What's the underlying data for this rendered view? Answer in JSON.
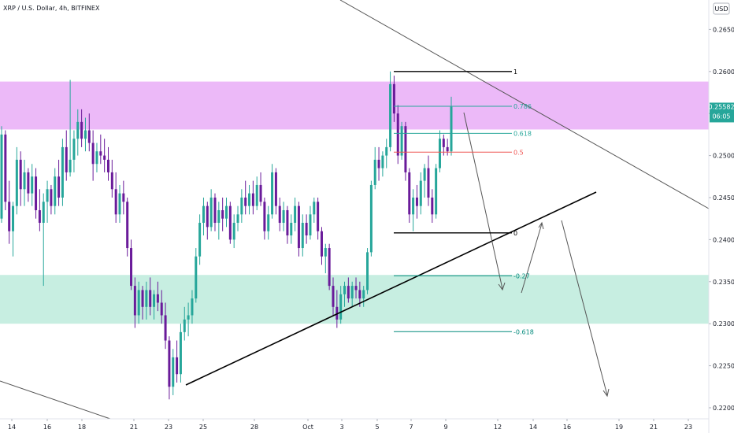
{
  "header": {
    "title": "XRP / U.S. Dollar, 4h, BITFINEX",
    "currency_label": "USD"
  },
  "price_tag": {
    "value": "0.25582",
    "countdown": "06:05"
  },
  "colors": {
    "bull": "#26a69a",
    "bear": "#6a1b9a",
    "resistance_zone": "#e6a2f5",
    "support_zone": "#b9ead9",
    "fib_green": "#26a69a",
    "fib_red": "#ef5350",
    "fib_teal": "#00897b",
    "price_tag_bg": "#26a69a"
  },
  "fib_levels": [
    {
      "label": "1",
      "value": 0.26,
      "color": "#000000"
    },
    {
      "label": "0.786",
      "value": 0.25586,
      "color": "#26a69a"
    },
    {
      "label": "0.618",
      "value": 0.25264,
      "color": "#26a69a"
    },
    {
      "label": "0.5",
      "value": 0.2504,
      "color": "#ef5350"
    },
    {
      "label": "0",
      "value": 0.2408,
      "color": "#000000"
    },
    {
      "label": "-0.27",
      "value": 0.2357,
      "color": "#00897b"
    },
    {
      "label": "-0.618",
      "value": 0.22905,
      "color": "#00897b"
    }
  ],
  "chart_data": {
    "type": "candlestick",
    "title": "XRP / U.S. Dollar, 4h, BITFINEX",
    "ylabel": "USD",
    "ylim": [
      0.217,
      0.2685
    ],
    "y_ticks": [
      "0.26500",
      "0.26000",
      "0.25500",
      "0.25000",
      "0.24500",
      "0.24000",
      "0.23500",
      "0.23000",
      "0.22500",
      "0.22000"
    ],
    "x_ticks": [
      "14",
      "16",
      "18",
      "21",
      "23",
      "25",
      "28",
      "Oct",
      "3",
      "5",
      "7",
      "9",
      "12",
      "14",
      "16",
      "19",
      "21",
      "23"
    ],
    "zones": [
      {
        "name": "resistance",
        "from": 0.2531,
        "to": 0.2588
      },
      {
        "name": "support",
        "from": 0.23,
        "to": 0.2358
      }
    ],
    "candles": [
      [
        0.2425,
        0.2535,
        0.242,
        0.2525
      ],
      [
        0.2525,
        0.253,
        0.2435,
        0.2445
      ],
      [
        0.2445,
        0.247,
        0.2395,
        0.241
      ],
      [
        0.241,
        0.2445,
        0.238,
        0.244
      ],
      [
        0.244,
        0.251,
        0.243,
        0.2495
      ],
      [
        0.2495,
        0.2505,
        0.244,
        0.246
      ],
      [
        0.246,
        0.2495,
        0.244,
        0.248
      ],
      [
        0.248,
        0.2485,
        0.2445,
        0.2455
      ],
      [
        0.2455,
        0.249,
        0.244,
        0.2475
      ],
      [
        0.2475,
        0.2485,
        0.2425,
        0.2435
      ],
      [
        0.2435,
        0.246,
        0.241,
        0.242
      ],
      [
        0.242,
        0.2455,
        0.2345,
        0.2445
      ],
      [
        0.2445,
        0.247,
        0.242,
        0.246
      ],
      [
        0.246,
        0.2465,
        0.243,
        0.244
      ],
      [
        0.244,
        0.2485,
        0.243,
        0.2475
      ],
      [
        0.2475,
        0.2495,
        0.244,
        0.245
      ],
      [
        0.245,
        0.252,
        0.244,
        0.251
      ],
      [
        0.251,
        0.253,
        0.247,
        0.248
      ],
      [
        0.248,
        0.259,
        0.2475,
        0.2495
      ],
      [
        0.2495,
        0.253,
        0.248,
        0.252
      ],
      [
        0.252,
        0.2555,
        0.25,
        0.254
      ],
      [
        0.254,
        0.2555,
        0.251,
        0.252
      ],
      [
        0.252,
        0.2545,
        0.2505,
        0.253
      ],
      [
        0.253,
        0.255,
        0.2505,
        0.2515
      ],
      [
        0.2515,
        0.253,
        0.247,
        0.249
      ],
      [
        0.249,
        0.2515,
        0.248,
        0.2505
      ],
      [
        0.2505,
        0.2525,
        0.249,
        0.25
      ],
      [
        0.25,
        0.252,
        0.248,
        0.2495
      ],
      [
        0.2495,
        0.251,
        0.247,
        0.248
      ],
      [
        0.248,
        0.2495,
        0.245,
        0.246
      ],
      [
        0.246,
        0.248,
        0.242,
        0.243
      ],
      [
        0.243,
        0.2465,
        0.242,
        0.2455
      ],
      [
        0.2455,
        0.247,
        0.243,
        0.2445
      ],
      [
        0.2445,
        0.245,
        0.238,
        0.239
      ],
      [
        0.239,
        0.24,
        0.234,
        0.2345
      ],
      [
        0.2345,
        0.2355,
        0.2295,
        0.231
      ],
      [
        0.231,
        0.235,
        0.23,
        0.234
      ],
      [
        0.234,
        0.2345,
        0.2305,
        0.232
      ],
      [
        0.232,
        0.235,
        0.2305,
        0.234
      ],
      [
        0.234,
        0.2355,
        0.231,
        0.232
      ],
      [
        0.232,
        0.234,
        0.2305,
        0.2335
      ],
      [
        0.2335,
        0.235,
        0.2315,
        0.2325
      ],
      [
        0.2325,
        0.234,
        0.23,
        0.231
      ],
      [
        0.231,
        0.2325,
        0.227,
        0.228
      ],
      [
        0.228,
        0.2285,
        0.221,
        0.2225
      ],
      [
        0.2225,
        0.227,
        0.2215,
        0.226
      ],
      [
        0.226,
        0.228,
        0.223,
        0.224
      ],
      [
        0.224,
        0.23,
        0.223,
        0.229
      ],
      [
        0.229,
        0.232,
        0.228,
        0.2305
      ],
      [
        0.2305,
        0.2325,
        0.2285,
        0.231
      ],
      [
        0.231,
        0.234,
        0.23,
        0.233
      ],
      [
        0.233,
        0.239,
        0.2325,
        0.238
      ],
      [
        0.238,
        0.243,
        0.237,
        0.242
      ],
      [
        0.242,
        0.245,
        0.2405,
        0.244
      ],
      [
        0.244,
        0.2445,
        0.24,
        0.2415
      ],
      [
        0.2415,
        0.246,
        0.241,
        0.245
      ],
      [
        0.245,
        0.2455,
        0.241,
        0.242
      ],
      [
        0.242,
        0.2445,
        0.24,
        0.2435
      ],
      [
        0.2435,
        0.245,
        0.241,
        0.2425
      ],
      [
        0.2425,
        0.245,
        0.2415,
        0.244
      ],
      [
        0.244,
        0.2445,
        0.2395,
        0.24
      ],
      [
        0.24,
        0.243,
        0.239,
        0.242
      ],
      [
        0.242,
        0.244,
        0.241,
        0.243
      ],
      [
        0.243,
        0.246,
        0.242,
        0.245
      ],
      [
        0.245,
        0.247,
        0.243,
        0.244
      ],
      [
        0.244,
        0.2465,
        0.243,
        0.2455
      ],
      [
        0.2455,
        0.247,
        0.243,
        0.244
      ],
      [
        0.244,
        0.2475,
        0.2435,
        0.2465
      ],
      [
        0.2465,
        0.248,
        0.244,
        0.2445
      ],
      [
        0.2445,
        0.245,
        0.24,
        0.241
      ],
      [
        0.241,
        0.244,
        0.24,
        0.243
      ],
      [
        0.243,
        0.249,
        0.2425,
        0.248
      ],
      [
        0.248,
        0.2485,
        0.243,
        0.244
      ],
      [
        0.244,
        0.245,
        0.241,
        0.242
      ],
      [
        0.242,
        0.2445,
        0.241,
        0.2435
      ],
      [
        0.2435,
        0.244,
        0.2395,
        0.2405
      ],
      [
        0.2405,
        0.243,
        0.2395,
        0.242
      ],
      [
        0.242,
        0.245,
        0.241,
        0.244
      ],
      [
        0.244,
        0.2445,
        0.238,
        0.239
      ],
      [
        0.239,
        0.243,
        0.238,
        0.242
      ],
      [
        0.242,
        0.243,
        0.2395,
        0.2405
      ],
      [
        0.2405,
        0.244,
        0.24,
        0.243
      ],
      [
        0.243,
        0.245,
        0.242,
        0.2445
      ],
      [
        0.2445,
        0.245,
        0.24,
        0.241
      ],
      [
        0.241,
        0.2415,
        0.237,
        0.238
      ],
      [
        0.238,
        0.2395,
        0.236,
        0.239
      ],
      [
        0.239,
        0.2395,
        0.234,
        0.2345
      ],
      [
        0.2345,
        0.2355,
        0.231,
        0.232
      ],
      [
        0.232,
        0.234,
        0.2295,
        0.2305
      ],
      [
        0.2305,
        0.2345,
        0.23,
        0.2335
      ],
      [
        0.2335,
        0.235,
        0.232,
        0.2345
      ],
      [
        0.2345,
        0.2355,
        0.2325,
        0.233
      ],
      [
        0.233,
        0.235,
        0.232,
        0.2345
      ],
      [
        0.2345,
        0.2355,
        0.233,
        0.234
      ],
      [
        0.234,
        0.235,
        0.232,
        0.233
      ],
      [
        0.233,
        0.2345,
        0.232,
        0.234
      ],
      [
        0.234,
        0.239,
        0.2335,
        0.2385
      ],
      [
        0.2385,
        0.247,
        0.238,
        0.2465
      ],
      [
        0.2465,
        0.251,
        0.246,
        0.2495
      ],
      [
        0.2495,
        0.251,
        0.247,
        0.2485
      ],
      [
        0.2485,
        0.2505,
        0.2475,
        0.25
      ],
      [
        0.25,
        0.252,
        0.2485,
        0.251
      ],
      [
        0.251,
        0.26,
        0.2505,
        0.2585
      ],
      [
        0.2585,
        0.2595,
        0.254,
        0.255
      ],
      [
        0.255,
        0.256,
        0.249,
        0.25
      ],
      [
        0.25,
        0.254,
        0.2495,
        0.2535
      ],
      [
        0.2535,
        0.254,
        0.247,
        0.248
      ],
      [
        0.248,
        0.2485,
        0.242,
        0.243
      ],
      [
        0.243,
        0.246,
        0.241,
        0.245
      ],
      [
        0.245,
        0.2465,
        0.2425,
        0.244
      ],
      [
        0.244,
        0.248,
        0.243,
        0.247
      ],
      [
        0.247,
        0.249,
        0.245,
        0.2485
      ],
      [
        0.2485,
        0.25,
        0.244,
        0.245
      ],
      [
        0.245,
        0.246,
        0.242,
        0.243
      ],
      [
        0.243,
        0.249,
        0.2425,
        0.2485
      ],
      [
        0.2485,
        0.253,
        0.248,
        0.252
      ],
      [
        0.252,
        0.2525,
        0.25,
        0.251
      ],
      [
        0.251,
        0.252,
        0.25,
        0.2505
      ],
      [
        0.2505,
        0.257,
        0.25,
        0.2558
      ]
    ]
  }
}
